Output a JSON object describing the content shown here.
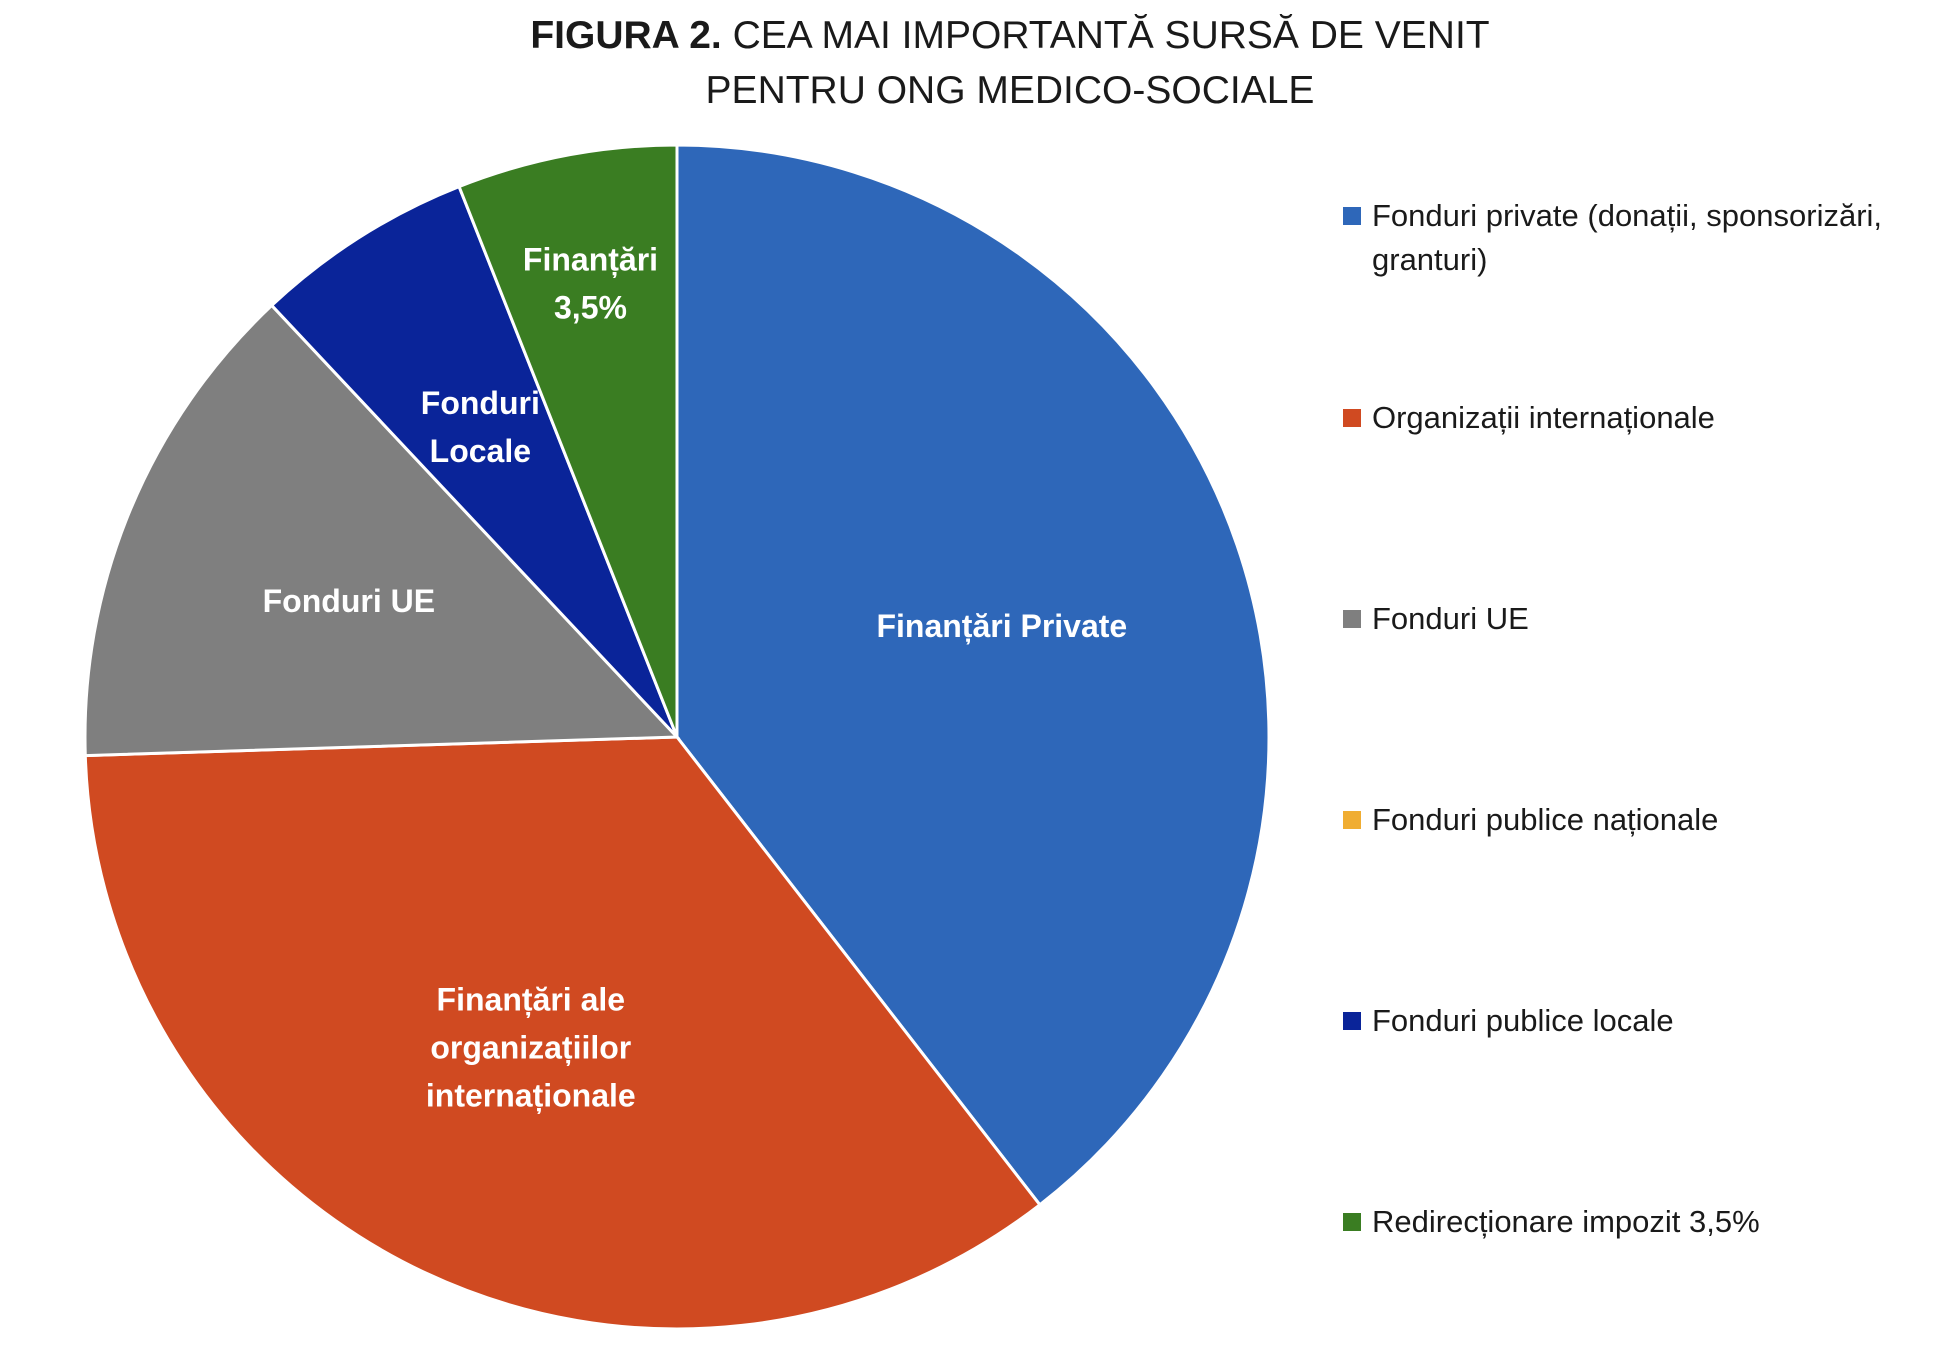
{
  "title": {
    "prefix": "FIGURA 2.",
    "line1": " CEA MAI IMPORTANTĂ SURSĂ DE VENIT",
    "line2": "PENTRU ONG MEDICO-SOCIALE"
  },
  "chart_data": {
    "type": "pie",
    "start_angle_deg": 0,
    "direction": "clockwise",
    "slices": [
      {
        "name": "Fonduri private (donații, sponsorizări, granturi)",
        "label": [
          "Finanțări Private"
        ],
        "value": 39.5,
        "color": "#2E67B9"
      },
      {
        "name": "Organizații internaționale",
        "label": [
          "Finanțări ale",
          "organizațiilor",
          "internaționale"
        ],
        "value": 35.0,
        "color": "#D04A21"
      },
      {
        "name": "Fonduri UE",
        "label": [
          "Fonduri UE"
        ],
        "value": 13.5,
        "color": "#7F7F7F"
      },
      {
        "name": "Fonduri publice naționale",
        "label": [],
        "value": 0,
        "color": "#F0AD32"
      },
      {
        "name": "Fonduri publice locale",
        "label": [
          "Fonduri",
          "Locale"
        ],
        "value": 6.0,
        "color": "#0A2499"
      },
      {
        "name": "Redirecționare impozit 3,5%",
        "label": [
          "Finanțări",
          "3,5%"
        ],
        "value": 6.0,
        "color": "#3A7D22"
      }
    ],
    "legend_position": "right"
  }
}
